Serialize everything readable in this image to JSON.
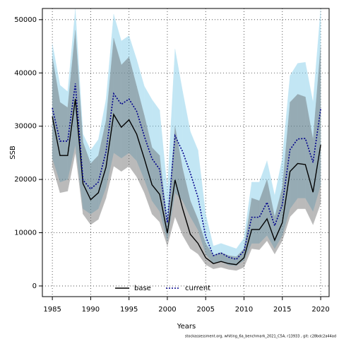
{
  "chart_data": {
    "type": "line",
    "x_label": "Years",
    "y_label": "SSB",
    "footnote": "stockassessment.org, whiting_6a_benchmark_2021_C5A, r13933 , git: c28bdc2a44ad",
    "x": [
      1985,
      1986,
      1987,
      1988,
      1989,
      1990,
      1991,
      1992,
      1993,
      1994,
      1995,
      1996,
      1997,
      1998,
      1999,
      2000,
      2001,
      2002,
      2003,
      2004,
      2005,
      2006,
      2007,
      2008,
      2009,
      2010,
      2011,
      2012,
      2013,
      2014,
      2015,
      2016,
      2017,
      2018,
      2019,
      2020
    ],
    "xlim": [
      1983.7,
      2021.1
    ],
    "xticks": [
      1985,
      1990,
      1995,
      2000,
      2005,
      2010,
      2015,
      2020
    ],
    "ylim": [
      -2000,
      52100
    ],
    "yticks": [
      0,
      10000,
      20000,
      30000,
      40000,
      50000
    ],
    "grid": true,
    "legend": "bottom",
    "series": [
      {
        "name": "base",
        "color": "#000000",
        "band_color": "#555555",
        "dash": false,
        "values": [
          31800,
          24500,
          24500,
          35100,
          19200,
          16200,
          17500,
          22300,
          32200,
          29800,
          31200,
          28500,
          23900,
          19000,
          17200,
          9900,
          19900,
          14500,
          9700,
          8000,
          5300,
          4200,
          4600,
          4200,
          4000,
          5300,
          10600,
          10600,
          12600,
          8600,
          11900,
          21500,
          23000,
          22800,
          17600,
          26500
        ],
        "upper": [
          43000,
          34500,
          33500,
          48000,
          27000,
          23000,
          24500,
          31000,
          46500,
          41500,
          43000,
          37500,
          32000,
          26000,
          24500,
          12000,
          30000,
          22000,
          16000,
          12500,
          8000,
          5800,
          6300,
          5700,
          5500,
          7000,
          16500,
          16000,
          20000,
          13000,
          18500,
          34500,
          36000,
          35500,
          27500,
          45000
        ],
        "lower": [
          22500,
          17500,
          17800,
          25000,
          13500,
          11500,
          12500,
          16500,
          22500,
          21500,
          22500,
          20500,
          17500,
          13500,
          12000,
          7500,
          13000,
          9500,
          7000,
          6000,
          4000,
          3200,
          3500,
          3100,
          2900,
          3500,
          7000,
          6800,
          8500,
          6000,
          8500,
          13000,
          14500,
          14500,
          11500,
          15500
        ]
      },
      {
        "name": "current",
        "color": "#00008b",
        "band_color": "#87ceeb",
        "dash": true,
        "values": [
          33400,
          27200,
          27200,
          38000,
          19900,
          18200,
          19500,
          25200,
          36100,
          34100,
          35100,
          32800,
          28100,
          23900,
          21900,
          11900,
          28200,
          25200,
          21200,
          16600,
          9300,
          5700,
          6200,
          5400,
          5000,
          6600,
          12900,
          12900,
          15700,
          11300,
          15300,
          25600,
          27600,
          27700,
          23200,
          33200
        ],
        "upper": [
          45500,
          37700,
          36500,
          52000,
          28500,
          25500,
          27500,
          35000,
          51000,
          46000,
          47000,
          42500,
          37500,
          35000,
          33000,
          18000,
          44500,
          36500,
          29000,
          25500,
          13500,
          7500,
          8000,
          7500,
          7000,
          9000,
          19500,
          19500,
          23500,
          17000,
          24000,
          39500,
          41800,
          42000,
          34500,
          52000
        ],
        "lower": [
          24000,
          19500,
          20000,
          26500,
          14500,
          13500,
          14500,
          18500,
          25000,
          24000,
          25000,
          23500,
          20000,
          16000,
          14000,
          8500,
          17500,
          16000,
          13000,
          10500,
          6000,
          4200,
          4600,
          3900,
          3800,
          4800,
          8000,
          8000,
          9500,
          7000,
          9500,
          14500,
          16500,
          16500,
          14000,
          19000
        ]
      }
    ]
  }
}
